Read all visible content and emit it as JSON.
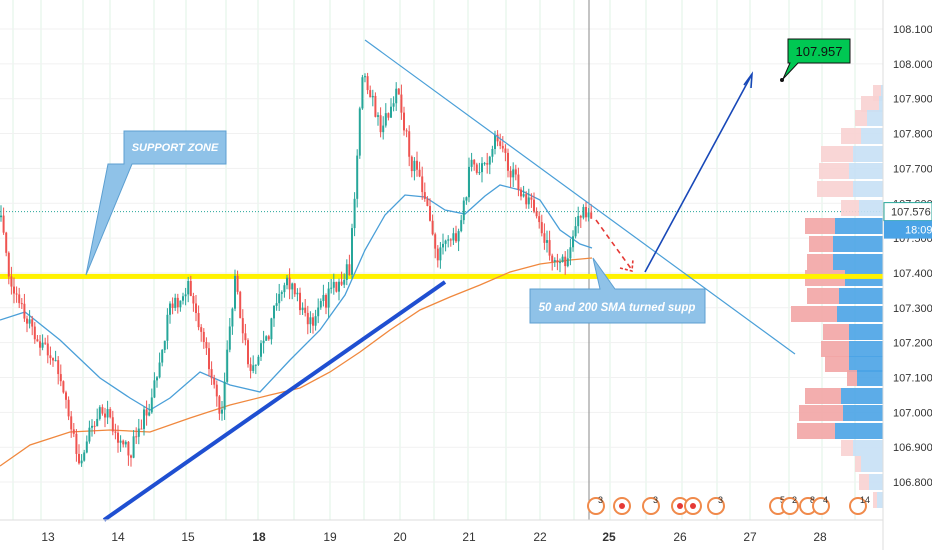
{
  "chart_data": {
    "type": "candlestick",
    "instrument_price_axis": {
      "ticks": [
        "108.100",
        "108.000",
        "107.900",
        "107.800",
        "107.700",
        "107.600",
        "107.500",
        "107.400",
        "107.300",
        "107.200",
        "107.100",
        "107.000",
        "106.900",
        "106.800"
      ],
      "range": [
        106.75,
        108.15
      ]
    },
    "x_axis": {
      "labels": [
        "13",
        "14",
        "15",
        "18",
        "19",
        "20",
        "21",
        "22",
        "25",
        "26",
        "27",
        "28"
      ],
      "bold_labels": [
        "18",
        "25"
      ]
    },
    "last_price": "107.576",
    "countdown": "18:09",
    "target_price": "107.957",
    "annotations": {
      "support_zone": "SUPPORT ZONE",
      "sma_note": "50 and 200 SMA turned supp"
    },
    "levels": {
      "support_line_price": 107.39,
      "current_price": 107.576
    },
    "events": [
      {
        "label": "3"
      },
      {
        "label": "3"
      },
      {
        "label": "3"
      },
      {
        "label": "5"
      },
      {
        "label": "2"
      },
      {
        "label": "8"
      },
      {
        "label": "4"
      },
      {
        "label": "14"
      }
    ],
    "colors": {
      "up": "#26a69a",
      "down": "#ef5350",
      "sma50": "#4a9fd8",
      "sma200": "#f0883e",
      "support": "#fff200",
      "trendline_blue": "#1f4fd1",
      "price_badge": "#4aa3e6",
      "target_badge": "#00c853"
    }
  }
}
